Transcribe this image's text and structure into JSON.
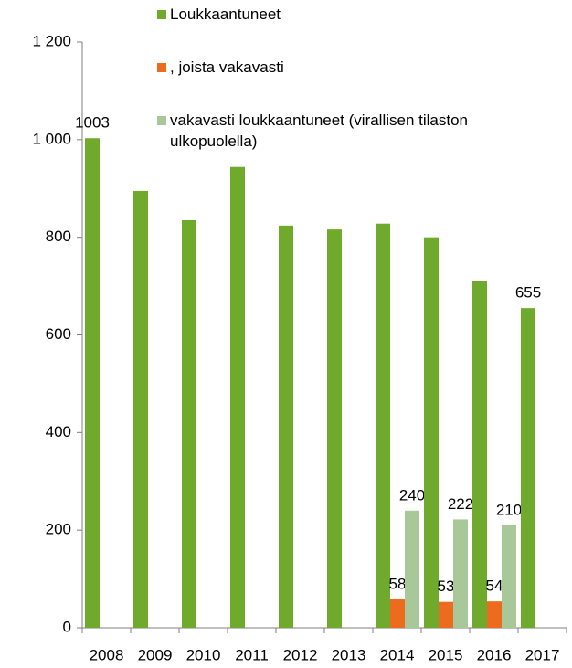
{
  "chart_data": {
    "type": "bar",
    "categories": [
      "2008",
      "2009",
      "2010",
      "2011",
      "2012",
      "2013",
      "2014",
      "2015",
      "2016",
      "2017"
    ],
    "series": [
      {
        "name": "Loukkaantuneet",
        "color": "#6faa2c",
        "values": [
          1003,
          895,
          835,
          944,
          824,
          816,
          828,
          800,
          710,
          655
        ],
        "value_labels": [
          "1003",
          null,
          null,
          null,
          null,
          null,
          null,
          null,
          null,
          "655"
        ]
      },
      {
        "name": ", joista vakavasti",
        "color": "#ec6b1f",
        "values": [
          null,
          null,
          null,
          null,
          null,
          null,
          58,
          53,
          54,
          null
        ]
      },
      {
        "name": "vakavasti loukkaantuneet (virallisen tilaston ulkopuolella)",
        "color": "#a9c89a",
        "values": [
          null,
          null,
          null,
          null,
          null,
          null,
          240,
          222,
          210,
          null
        ]
      }
    ],
    "ylim": [
      0,
      1200
    ],
    "yticks": [
      0,
      200,
      400,
      600,
      800,
      {
        "value": 1000,
        "label": "1 000"
      },
      {
        "value": 1200,
        "label": "1 200"
      }
    ],
    "legend": "top"
  }
}
